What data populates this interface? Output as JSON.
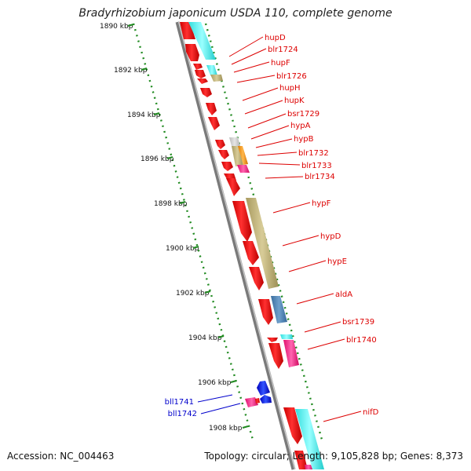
{
  "title": "Bradyrhizobium japonicum USDA 110, complete genome",
  "footer": {
    "accession": "Accession: NC_004463",
    "summary": "Topology: circular; Length: 9,105,828 bp; Genes: 8,373"
  },
  "colors": {
    "backbone": "#8a8a8a",
    "tick": "#228b22",
    "label_forward": "#dd0000",
    "label_reverse": "#0000cc"
  },
  "ticks": [
    {
      "label": "1890 kbp"
    },
    {
      "label": "1892 kbp"
    },
    {
      "label": "1894 kbp"
    },
    {
      "label": "1896 kbp"
    },
    {
      "label": "1898 kbp"
    },
    {
      "label": "1900 kbp"
    },
    {
      "label": "1902 kbp"
    },
    {
      "label": "1904 kbp"
    },
    {
      "label": "1906 kbp"
    },
    {
      "label": "1908 kbp"
    }
  ],
  "labels_forward": [
    {
      "name": "hupD"
    },
    {
      "name": "blr1724"
    },
    {
      "name": "hupF"
    },
    {
      "name": "blr1726"
    },
    {
      "name": "hupH"
    },
    {
      "name": "hupK"
    },
    {
      "name": "bsr1729"
    },
    {
      "name": "hypA"
    },
    {
      "name": "hypB"
    },
    {
      "name": "blr1732"
    },
    {
      "name": "blr1733"
    },
    {
      "name": "blr1734"
    },
    {
      "name": "hypF"
    },
    {
      "name": "hypD"
    },
    {
      "name": "hypE"
    },
    {
      "name": "aldA"
    },
    {
      "name": "bsr1739"
    },
    {
      "name": "blr1740"
    },
    {
      "name": "nifD"
    }
  ],
  "labels_reverse": [
    {
      "name": "bll1741"
    },
    {
      "name": "bll1742"
    }
  ]
}
